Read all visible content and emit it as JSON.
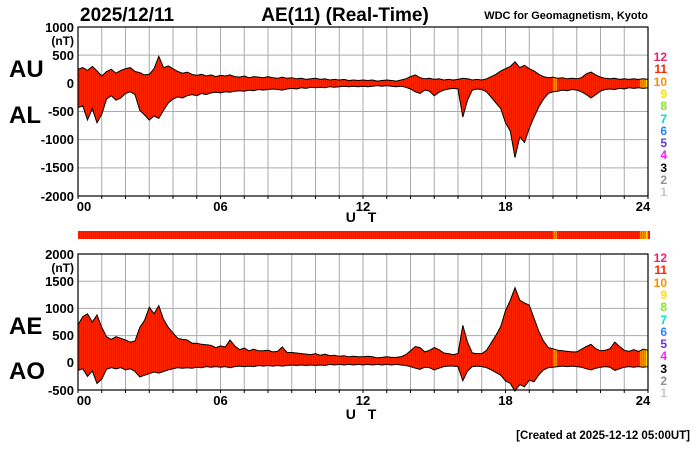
{
  "header": {
    "date": "2025/12/11",
    "title": "AE(11) (Real-Time)",
    "source": "WDC for Geomagnetism, Kyoto"
  },
  "footer": {
    "created": "[Created at 2025-12-12 05:00UT]"
  },
  "colors": {
    "grid": "#aaaaaa",
    "frame": "#000000",
    "outline": "#000000",
    "background": "#ffffff"
  },
  "legend": {
    "description": "number of reporting stations",
    "items": [
      {
        "level": 12,
        "color": "#E8246E"
      },
      {
        "level": 11,
        "color": "#FF2400"
      },
      {
        "level": 10,
        "color": "#FF8C00"
      },
      {
        "level": 9,
        "color": "#FFE000"
      },
      {
        "level": 8,
        "color": "#84E828"
      },
      {
        "level": 7,
        "color": "#00E0D0"
      },
      {
        "level": 6,
        "color": "#2882FF"
      },
      {
        "level": 5,
        "color": "#6038E0"
      },
      {
        "level": 4,
        "color": "#F028F0"
      },
      {
        "level": 3,
        "color": "#000000"
      },
      {
        "level": 2,
        "color": "#909090"
      },
      {
        "level": 1,
        "color": "#C8C8C8"
      }
    ]
  },
  "station_segments": [
    {
      "start": 0,
      "end": 20.0,
      "level": 11
    },
    {
      "start": 20.0,
      "end": 20.17,
      "level": 10
    },
    {
      "start": 20.17,
      "end": 23.65,
      "level": 11
    },
    {
      "start": 23.65,
      "end": 23.9,
      "level": 10
    },
    {
      "start": 23.9,
      "end": 24.0,
      "level": 9
    }
  ],
  "chart_data": [
    {
      "type": "area",
      "title": "AU / AL envelope",
      "xlabel": "U T",
      "ylabel": "(nT)",
      "ylim": [
        -2000,
        1000
      ],
      "yticks": [
        1000,
        500,
        0,
        -500,
        -1000,
        -1500,
        -2000
      ],
      "xticks": [
        {
          "label": "00",
          "hour": 0
        },
        {
          "label": "06",
          "hour": 6
        },
        {
          "label": "12",
          "hour": 12
        },
        {
          "label": "18",
          "hour": 18
        },
        {
          "label": "24",
          "hour": 24
        }
      ],
      "x_start": 0,
      "x_step": 0.2,
      "series": [
        {
          "name": "AU",
          "values": [
            250,
            280,
            230,
            300,
            220,
            130,
            210,
            250,
            180,
            230,
            260,
            280,
            210,
            190,
            150,
            160,
            260,
            480,
            280,
            310,
            260,
            210,
            180,
            200,
            160,
            140,
            160,
            130,
            150,
            120,
            140,
            130,
            150,
            120,
            110,
            130,
            100,
            120,
            110,
            100,
            120,
            100,
            90,
            110,
            90,
            100,
            80,
            90,
            70,
            80,
            90,
            70,
            80,
            60,
            70,
            60,
            70,
            50,
            60,
            50,
            60,
            50,
            60,
            40,
            50,
            60,
            50,
            40,
            60,
            80,
            120,
            150,
            100,
            80,
            90,
            70,
            80,
            60,
            70,
            60,
            70,
            90,
            80,
            60,
            70,
            60,
            80,
            120,
            160,
            220,
            260,
            300,
            380,
            280,
            320,
            260,
            220,
            160,
            120,
            100,
            110,
            90,
            100,
            80,
            90,
            80,
            100,
            170,
            200,
            150,
            110,
            90,
            80,
            90,
            70,
            80,
            70,
            80,
            70,
            80,
            70
          ]
        },
        {
          "name": "AL",
          "values": [
            -430,
            -400,
            -650,
            -450,
            -700,
            -550,
            -280,
            -220,
            -300,
            -260,
            -180,
            -150,
            -200,
            -480,
            -560,
            -650,
            -580,
            -620,
            -480,
            -350,
            -280,
            -240,
            -260,
            -220,
            -200,
            -220,
            -180,
            -200,
            -170,
            -160,
            -170,
            -150,
            -160,
            -140,
            -130,
            -140,
            -120,
            -130,
            -110,
            -120,
            -110,
            -100,
            -110,
            -120,
            -100,
            -90,
            -100,
            -80,
            -90,
            -70,
            -80,
            -70,
            -80,
            -60,
            -70,
            -60,
            -50,
            -60,
            -50,
            -60,
            -50,
            -60,
            -50,
            -40,
            -50,
            -40,
            -50,
            -60,
            -50,
            -70,
            -100,
            -150,
            -180,
            -120,
            -140,
            -220,
            -160,
            -120,
            -100,
            -90,
            -100,
            -600,
            -300,
            -120,
            -100,
            -110,
            -150,
            -250,
            -350,
            -450,
            -700,
            -850,
            -1320,
            -950,
            -1050,
            -800,
            -600,
            -420,
            -280,
            -180,
            -150,
            -140,
            -120,
            -130,
            -110,
            -120,
            -150,
            -200,
            -260,
            -200,
            -140,
            -110,
            -100,
            -110,
            -90,
            -100,
            -80,
            -90,
            -80,
            -90,
            -80
          ]
        }
      ]
    },
    {
      "type": "area",
      "title": "AE / AO envelope",
      "xlabel": "U T",
      "ylabel": "(nT)",
      "ylim": [
        -500,
        2000
      ],
      "yticks": [
        2000,
        1500,
        1000,
        500,
        0,
        -500
      ],
      "xticks": [
        {
          "label": "00",
          "hour": 0
        },
        {
          "label": "06",
          "hour": 6
        },
        {
          "label": "12",
          "hour": 12
        },
        {
          "label": "18",
          "hour": 18
        },
        {
          "label": "24",
          "hour": 24
        }
      ],
      "x_start": 0,
      "x_step": 0.2,
      "series": [
        {
          "name": "AE",
          "values": [
            700,
            850,
            900,
            750,
            880,
            650,
            480,
            430,
            480,
            450,
            420,
            380,
            400,
            650,
            780,
            1020,
            900,
            1050,
            800,
            650,
            550,
            450,
            430,
            420,
            360,
            360,
            340,
            330,
            320,
            280,
            310,
            290,
            420,
            310,
            240,
            270,
            220,
            250,
            220,
            220,
            230,
            200,
            210,
            290,
            190,
            190,
            180,
            170,
            160,
            150,
            170,
            140,
            160,
            130,
            140,
            120,
            130,
            110,
            120,
            110,
            110,
            120,
            110,
            90,
            100,
            110,
            100,
            100,
            110,
            150,
            220,
            300,
            280,
            200,
            230,
            280,
            240,
            180,
            170,
            150,
            170,
            690,
            380,
            180,
            170,
            170,
            230,
            370,
            510,
            670,
            960,
            1150,
            1380,
            1150,
            1100,
            1060,
            820,
            580,
            400,
            280,
            260,
            230,
            220,
            210,
            200,
            200,
            250,
            300,
            340,
            260,
            220,
            230,
            260,
            380,
            300,
            230,
            210,
            240,
            210,
            250,
            230
          ]
        },
        {
          "name": "AO",
          "values": [
            -140,
            -110,
            -250,
            -150,
            -380,
            -300,
            -120,
            -90,
            -110,
            -90,
            -130,
            -110,
            -160,
            -260,
            -230,
            -200,
            -170,
            -190,
            -160,
            -130,
            -110,
            -90,
            -100,
            -90,
            -100,
            -80,
            -90,
            -70,
            -80,
            -70,
            -80,
            -70,
            -90,
            -70,
            -60,
            -70,
            -60,
            -70,
            -50,
            -60,
            -50,
            -60,
            -50,
            -60,
            -50,
            -40,
            -50,
            -40,
            -50,
            -40,
            -50,
            -40,
            -50,
            -30,
            -40,
            -30,
            -40,
            -30,
            -40,
            -30,
            -40,
            -30,
            -40,
            -30,
            -40,
            -30,
            -40,
            -30,
            -40,
            -50,
            -70,
            -100,
            -120,
            -80,
            -90,
            -130,
            -100,
            -70,
            -60,
            -60,
            -70,
            -330,
            -150,
            -70,
            -60,
            -70,
            -90,
            -130,
            -180,
            -230,
            -330,
            -380,
            -520,
            -400,
            -440,
            -320,
            -350,
            -220,
            -130,
            -90,
            -80,
            -70,
            -60,
            -70,
            -60,
            -70,
            -80,
            -110,
            -130,
            -100,
            -80,
            -70,
            -80,
            -140,
            -110,
            -80,
            -70,
            -80,
            -70,
            -80,
            -70
          ]
        }
      ]
    }
  ]
}
